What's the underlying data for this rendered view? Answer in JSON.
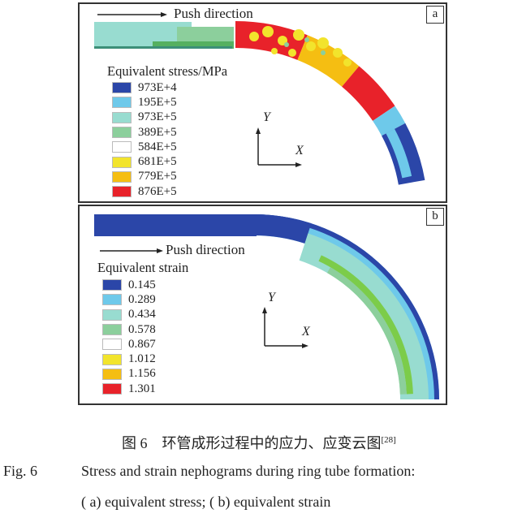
{
  "panel_a": {
    "label": "a",
    "push_direction": "Push direction",
    "legend_title": "Equivalent stress/MPa",
    "legend": [
      {
        "value": "973E+4",
        "color": "#2b46a8"
      },
      {
        "value": "195E+5",
        "color": "#6ec9ea"
      },
      {
        "value": "973E+5",
        "color": "#98dcd0"
      },
      {
        "value": "389E+5",
        "color": "#8ccf9c"
      },
      {
        "value": "584E+5",
        "color": "#ffffff"
      },
      {
        "value": "681E+5",
        "color": "#f2e42c"
      },
      {
        "value": "779E+5",
        "color": "#f5be12"
      },
      {
        "value": "876E+5",
        "color": "#e8222a"
      }
    ],
    "axis_y": "Y",
    "axis_x": "X"
  },
  "panel_b": {
    "label": "b",
    "push_direction": "Push direction",
    "legend_title": "Equivalent strain",
    "legend": [
      {
        "value": "0.145",
        "color": "#2b46a8"
      },
      {
        "value": "0.289",
        "color": "#6ec9ea"
      },
      {
        "value": "0.434",
        "color": "#98dcd0"
      },
      {
        "value": "0.578",
        "color": "#8ccf9c"
      },
      {
        "value": "0.867",
        "color": "#ffffff"
      },
      {
        "value": "1.012",
        "color": "#f2e42c"
      },
      {
        "value": "1.156",
        "color": "#f5be12"
      },
      {
        "value": "1.301",
        "color": "#e8222a"
      }
    ],
    "axis_y": "Y",
    "axis_x": "X"
  },
  "caption": {
    "cn": "图 6　环管成形过程中的应力、应变云图",
    "cn_ref": "[28]",
    "en_label": "Fig. 6",
    "en_line1": "Stress and strain nephograms during ring tube formation:",
    "en_line2": "( a)  equivalent stress; ( b)  equivalent strain"
  }
}
